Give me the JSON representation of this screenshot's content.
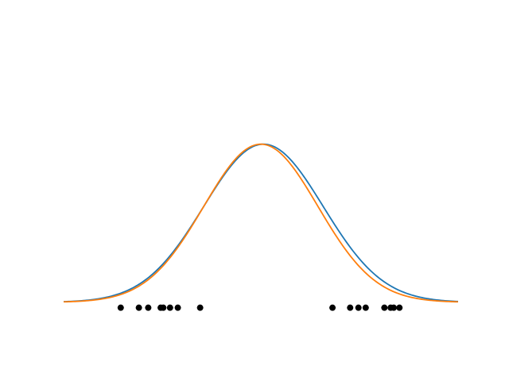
{
  "chart_data": {
    "type": "line",
    "axes_visible": false,
    "xlim": [
      -3.8,
      3.8
    ],
    "ylim": [
      -0.05,
      0.48
    ],
    "series": [
      {
        "kind": "line",
        "color": "#1f77b4",
        "peak_x": 0.05,
        "peak_y": 0.3,
        "sigma": 1.15,
        "floor_y": 0.01
      },
      {
        "kind": "line",
        "color": "#ff7f0e",
        "peak_x": 0.0,
        "peak_y": 0.3,
        "sigma": 1.1,
        "floor_y": 0.01
      }
    ],
    "points": {
      "kind": "scatter",
      "color": "#000000",
      "y": 0.0,
      "x": [
        -2.7,
        -2.35,
        -2.17,
        -1.93,
        -1.88,
        -1.75,
        -1.6,
        -1.17,
        1.38,
        1.72,
        1.88,
        2.02,
        2.38,
        2.5,
        2.56,
        2.67
      ]
    }
  }
}
